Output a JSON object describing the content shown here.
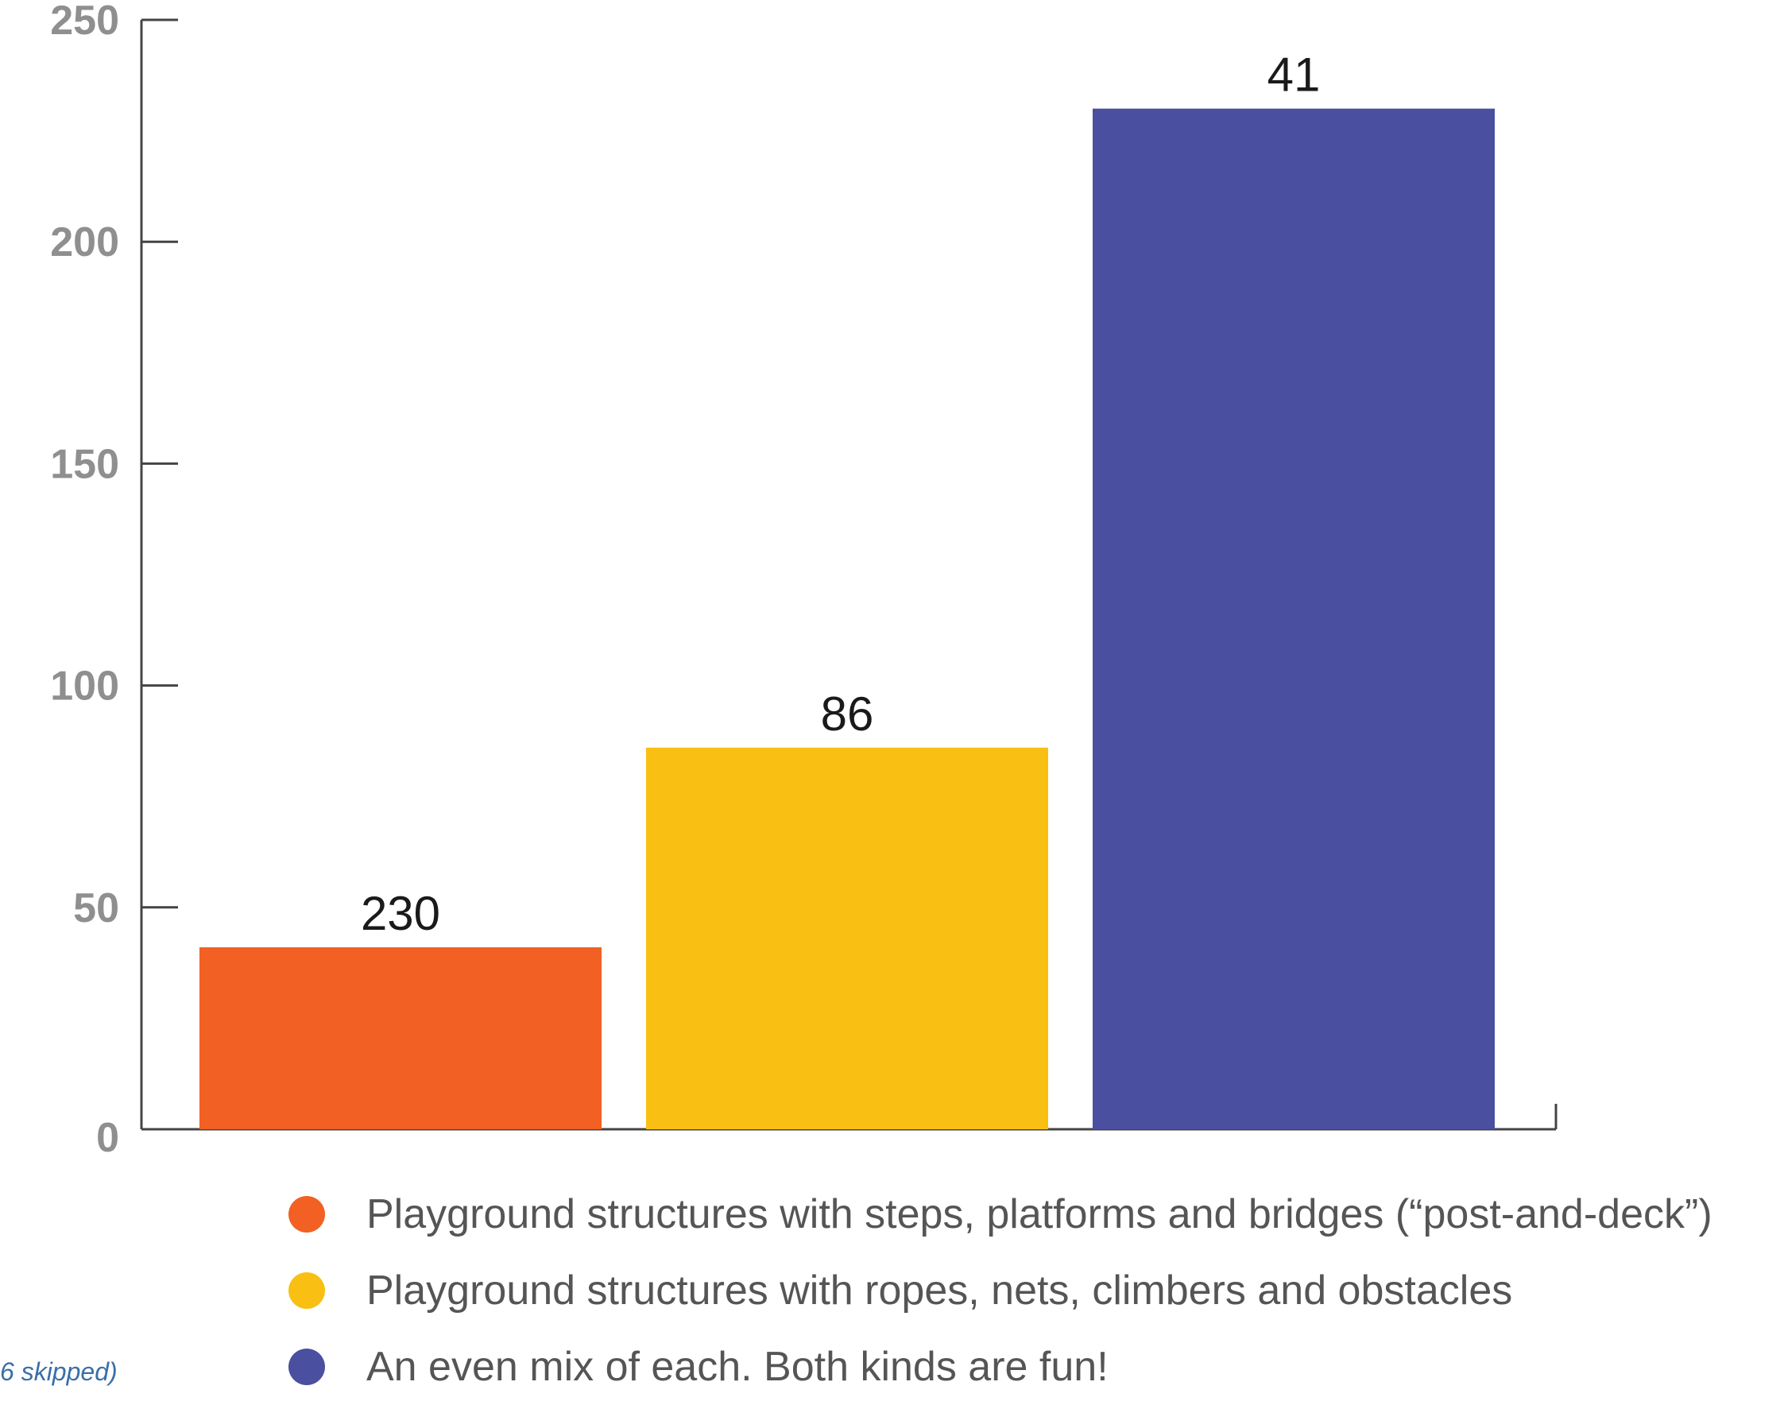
{
  "chart_data": {
    "type": "bar",
    "categories": [
      "Playground structures with steps, platforms and bridges (“post-and-deck”)",
      "Playground structures with ropes, nets, climbers and obstacles",
      "An even mix of each. Both kinds are fun!"
    ],
    "values": [
      41,
      86,
      230
    ],
    "data_labels": [
      "230",
      "86",
      "41"
    ],
    "colors": [
      "#f26024",
      "#f9c013",
      "#4a4f9f"
    ],
    "ylim": [
      0,
      250
    ],
    "yticks": [
      "0",
      "50",
      "100",
      "150",
      "200",
      "250"
    ],
    "grid": false,
    "legend_position": "bottom"
  },
  "footnote": "6 skipped)"
}
